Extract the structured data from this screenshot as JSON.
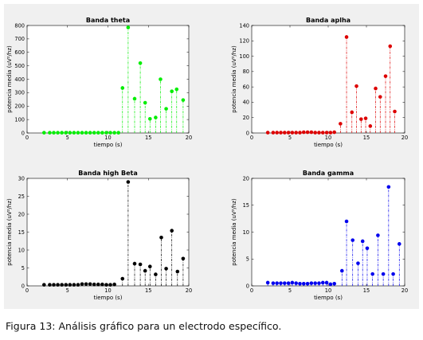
{
  "caption": {
    "label": "Figura 13:",
    "text": " Análisis gráfico para un electrodo específico."
  },
  "chart_data": [
    {
      "type": "stem",
      "title": "Banda theta",
      "xlabel": "tiempo (s)",
      "ylabel": "potencia media (uV²/hz)",
      "xlim": [
        0,
        20
      ],
      "ylim": [
        0,
        800
      ],
      "xticks": [
        "0",
        "5",
        "10",
        "15",
        "20"
      ],
      "yticks": [
        "0",
        "100",
        "200",
        "300",
        "400",
        "500",
        "600",
        "700",
        "800"
      ],
      "color": "#00ee00",
      "x": [
        2.1,
        2.8,
        3.3,
        3.8,
        4.3,
        4.8,
        5.3,
        5.8,
        6.3,
        6.8,
        7.3,
        7.8,
        8.3,
        8.8,
        9.3,
        9.8,
        10.3,
        10.8,
        11.3,
        11.8,
        12.5,
        13.3,
        14.0,
        14.6,
        15.2,
        15.9,
        16.5,
        17.2,
        17.9,
        18.5,
        19.3
      ],
      "y": [
        2,
        2,
        2,
        2,
        2,
        2,
        2,
        2,
        2,
        2,
        2,
        2,
        2,
        2,
        2,
        2,
        2,
        2,
        2,
        335,
        785,
        255,
        520,
        225,
        105,
        115,
        400,
        180,
        310,
        325,
        245
      ]
    },
    {
      "type": "stem",
      "title": "Banda aplha",
      "xlabel": "tiempo (s)",
      "ylabel": "potencia media (uV²/hz)",
      "xlim": [
        0,
        20
      ],
      "ylim": [
        0,
        140
      ],
      "xticks": [
        "0",
        "5",
        "10",
        "15",
        "20"
      ],
      "yticks": [
        "0",
        "20",
        "40",
        "60",
        "80",
        "100",
        "120",
        "140"
      ],
      "color": "#dd0000",
      "x": [
        2.1,
        2.8,
        3.3,
        3.8,
        4.3,
        4.8,
        5.3,
        5.8,
        6.3,
        6.8,
        7.3,
        7.8,
        8.3,
        8.8,
        9.3,
        9.8,
        10.3,
        10.8,
        11.6,
        12.4,
        13.1,
        13.7,
        14.3,
        14.9,
        15.5,
        16.2,
        16.8,
        17.5,
        18.1,
        18.7
      ],
      "y": [
        0.5,
        0.5,
        0.5,
        0.5,
        0.5,
        0.5,
        0.5,
        0.5,
        0.5,
        1,
        1,
        1,
        0.5,
        0.5,
        0.5,
        0.5,
        0.5,
        1,
        12,
        125,
        27,
        61,
        18,
        19,
        9,
        58,
        47,
        74,
        113,
        28
      ]
    },
    {
      "type": "stem",
      "title": "Banda high Beta",
      "xlabel": "tiempo (s)",
      "ylabel": "potencia media (uV²/hz)",
      "xlim": [
        0,
        20
      ],
      "ylim": [
        0,
        30
      ],
      "xticks": [
        "0",
        "5",
        "10",
        "15",
        "20"
      ],
      "yticks": [
        "0",
        "5",
        "10",
        "15",
        "20",
        "25",
        "30"
      ],
      "color": "#000000",
      "x": [
        2.1,
        2.8,
        3.3,
        3.8,
        4.3,
        4.8,
        5.3,
        5.8,
        6.3,
        6.8,
        7.3,
        7.8,
        8.3,
        8.8,
        9.3,
        9.8,
        10.3,
        10.8,
        11.8,
        12.5,
        13.3,
        14.0,
        14.6,
        15.2,
        15.9,
        16.6,
        17.2,
        17.9,
        18.6,
        19.3
      ],
      "y": [
        0.3,
        0.3,
        0.3,
        0.3,
        0.3,
        0.3,
        0.3,
        0.3,
        0.3,
        0.5,
        0.5,
        0.5,
        0.4,
        0.4,
        0.4,
        0.3,
        0.3,
        0.4,
        2,
        29,
        6.2,
        6.0,
        4.2,
        5.4,
        3.2,
        13.5,
        4.8,
        15.4,
        4.0,
        7.6
      ]
    },
    {
      "type": "stem",
      "title": "Banda gamma",
      "xlabel": "tiempo (s)",
      "ylabel": "potencia media (uV²/hz)",
      "xlim": [
        0,
        20
      ],
      "ylim": [
        0,
        20
      ],
      "xticks": [
        "0",
        "5",
        "10",
        "15",
        "20"
      ],
      "yticks": [
        "0",
        "5",
        "10",
        "15",
        "20"
      ],
      "color": "#0000ee",
      "x": [
        2.1,
        2.8,
        3.3,
        3.8,
        4.3,
        4.8,
        5.3,
        5.8,
        6.3,
        6.8,
        7.3,
        7.8,
        8.3,
        8.8,
        9.3,
        9.8,
        10.3,
        10.8,
        11.8,
        12.4,
        13.2,
        13.9,
        14.5,
        15.1,
        15.8,
        16.5,
        17.2,
        17.9,
        18.5,
        19.3
      ],
      "y": [
        0.6,
        0.5,
        0.5,
        0.5,
        0.5,
        0.5,
        0.6,
        0.5,
        0.4,
        0.4,
        0.4,
        0.5,
        0.5,
        0.5,
        0.6,
        0.6,
        0.3,
        0.4,
        2.8,
        12,
        8.5,
        4.2,
        8.3,
        7.0,
        2.2,
        9.4,
        2.2,
        18.4,
        2.2,
        7.8
      ]
    }
  ]
}
